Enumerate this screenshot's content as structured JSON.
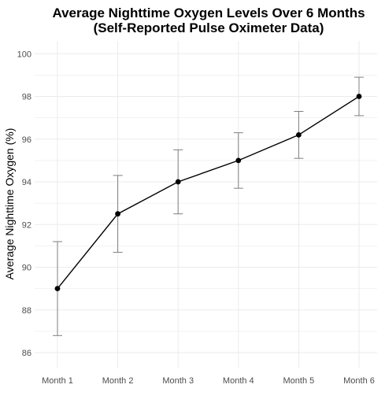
{
  "chart_data": {
    "type": "line",
    "title_line1": "Average Nighttime Oxygen Levels Over 6 Months",
    "title_line2": "(Self-Reported Pulse Oximeter Data)",
    "xlabel": "",
    "ylabel": "Average Nighttime Oxygen (%)",
    "categories": [
      "Month 1",
      "Month 2",
      "Month 3",
      "Month 4",
      "Month 5",
      "Month 6"
    ],
    "series": [
      {
        "values": [
          89.0,
          92.5,
          94.0,
          95.0,
          96.2,
          98.0
        ],
        "error_low": [
          86.8,
          90.7,
          92.5,
          93.7,
          95.1,
          97.1
        ],
        "error_high": [
          91.2,
          94.3,
          95.5,
          96.3,
          97.3,
          98.9
        ]
      }
    ],
    "ylim": [
      85.3,
      100.6
    ],
    "yticks": [
      86,
      88,
      90,
      92,
      94,
      96,
      98,
      100
    ],
    "grid": true,
    "legend": "none",
    "colors": {
      "line": "#000000",
      "points": "#000000",
      "errorbars": "#7f7f7f",
      "grid": "#ebebeb",
      "ticks": "#4d4d4d"
    }
  }
}
